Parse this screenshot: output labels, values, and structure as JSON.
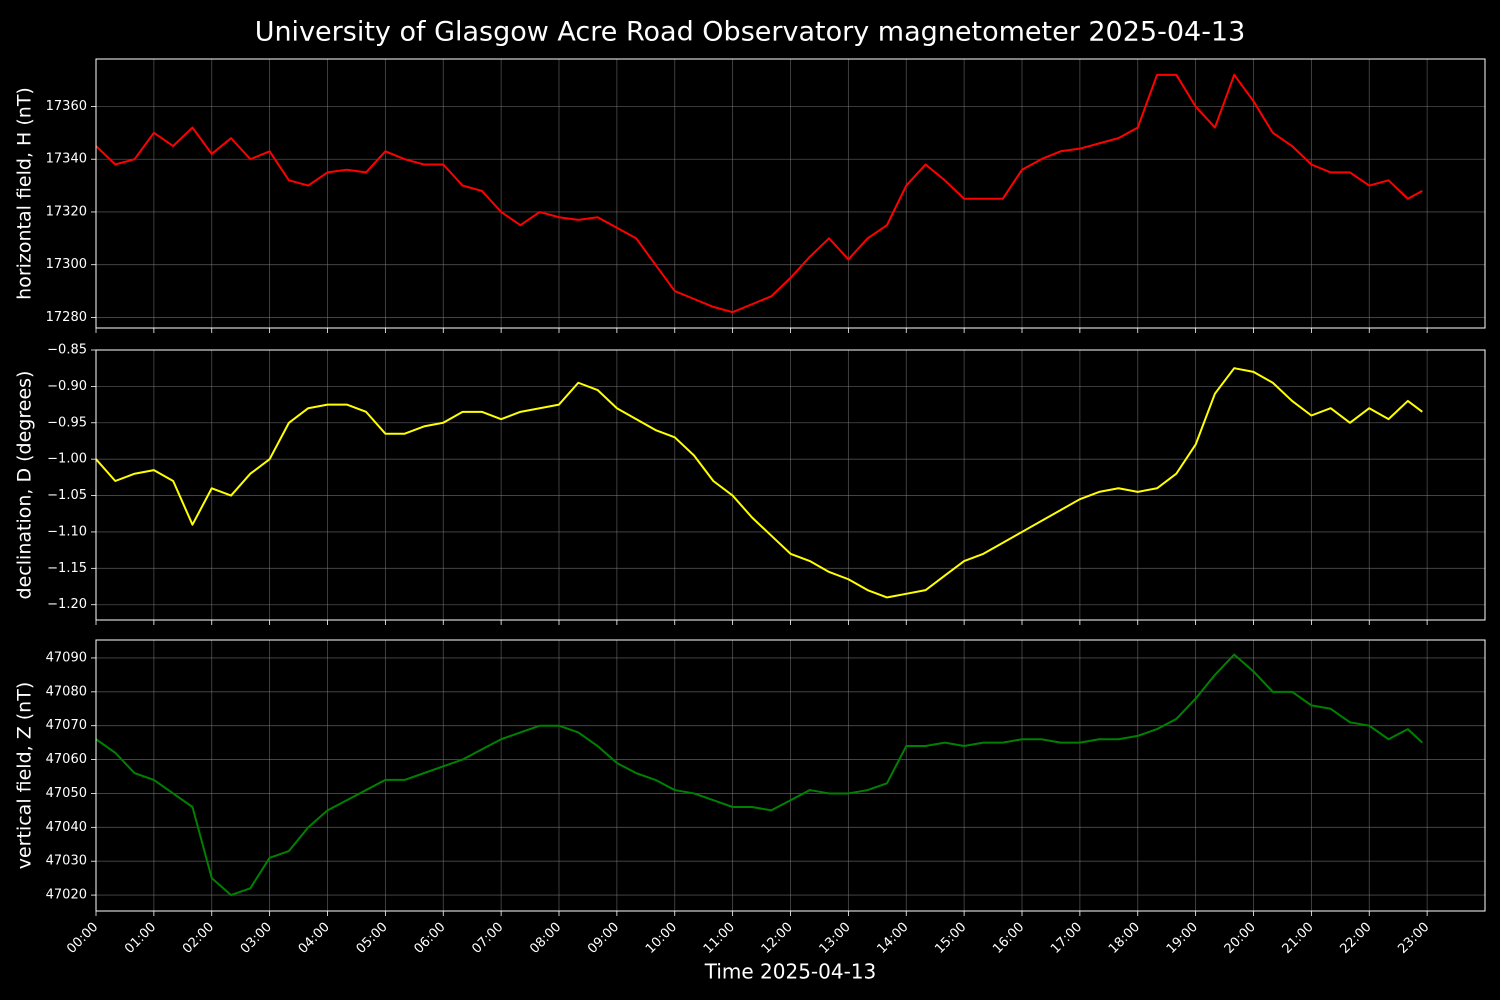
{
  "chart_data": [
    {
      "type": "line",
      "title": "University of Glasgow Acre Road Observatory magnetometer 2025-04-13",
      "ylabel": "horizontal field, H (nT)",
      "color": "#ff0000",
      "grid": true,
      "x": [
        "00:00",
        "00:20",
        "00:40",
        "01:00",
        "01:20",
        "01:40",
        "02:00",
        "02:20",
        "02:40",
        "03:00",
        "03:20",
        "03:40",
        "04:00",
        "04:20",
        "04:40",
        "05:00",
        "05:20",
        "05:40",
        "06:00",
        "06:20",
        "06:40",
        "07:00",
        "07:20",
        "07:40",
        "08:00",
        "08:20",
        "08:40",
        "09:00",
        "09:20",
        "09:40",
        "10:00",
        "10:20",
        "10:40",
        "11:00",
        "11:20",
        "11:40",
        "12:00",
        "12:20",
        "12:40",
        "13:00",
        "13:20",
        "13:40",
        "14:00",
        "14:20",
        "14:40",
        "15:00",
        "15:20",
        "15:40",
        "16:00",
        "16:20",
        "16:40",
        "17:00",
        "17:20",
        "17:40",
        "18:00",
        "18:20",
        "18:40",
        "19:00",
        "19:20",
        "19:40",
        "20:00",
        "20:20",
        "20:40",
        "21:00",
        "21:20",
        "21:40",
        "22:00",
        "22:20",
        "22:40",
        "22:55"
      ],
      "values": [
        17345,
        17338,
        17340,
        17350,
        17345,
        17352,
        17342,
        17348,
        17340,
        17343,
        17332,
        17330,
        17335,
        17336,
        17335,
        17343,
        17340,
        17338,
        17338,
        17330,
        17328,
        17320,
        17315,
        17320,
        17318,
        17317,
        17318,
        17314,
        17310,
        17300,
        17290,
        17287,
        17284,
        17282,
        17285,
        17288,
        17295,
        17303,
        17310,
        17302,
        17310,
        17315,
        17330,
        17338,
        17332,
        17325,
        17325,
        17325,
        17336,
        17340,
        17343,
        17344,
        17346,
        17348,
        17352,
        17372,
        17372,
        17360,
        17352,
        17372,
        17362,
        17350,
        17345,
        17338,
        17335,
        17335,
        17330,
        17332,
        17325,
        17328
      ],
      "xlim": [
        "00:00",
        "24:00"
      ],
      "xticks": [
        "00:00",
        "01:00",
        "02:00",
        "03:00",
        "04:00",
        "05:00",
        "06:00",
        "07:00",
        "08:00",
        "09:00",
        "10:00",
        "11:00",
        "12:00",
        "13:00",
        "14:00",
        "15:00",
        "16:00",
        "17:00",
        "18:00",
        "19:00",
        "20:00",
        "21:00",
        "22:00",
        "23:00"
      ],
      "ylim": [
        17276,
        17378
      ],
      "yticks": [
        17280,
        17300,
        17320,
        17340,
        17360
      ]
    },
    {
      "type": "line",
      "ylabel": "declination, D (degrees)",
      "color": "#ffff00",
      "grid": true,
      "x": [
        "00:00",
        "00:20",
        "00:40",
        "01:00",
        "01:20",
        "01:40",
        "02:00",
        "02:20",
        "02:40",
        "03:00",
        "03:20",
        "03:40",
        "04:00",
        "04:20",
        "04:40",
        "05:00",
        "05:20",
        "05:40",
        "06:00",
        "06:20",
        "06:40",
        "07:00",
        "07:20",
        "07:40",
        "08:00",
        "08:20",
        "08:40",
        "09:00",
        "09:20",
        "09:40",
        "10:00",
        "10:20",
        "10:40",
        "11:00",
        "11:20",
        "11:40",
        "12:00",
        "12:20",
        "12:40",
        "13:00",
        "13:20",
        "13:40",
        "14:00",
        "14:20",
        "14:40",
        "15:00",
        "15:20",
        "15:40",
        "16:00",
        "16:20",
        "16:40",
        "17:00",
        "17:20",
        "17:40",
        "18:00",
        "18:20",
        "18:40",
        "19:00",
        "19:20",
        "19:40",
        "20:00",
        "20:20",
        "20:40",
        "21:00",
        "21:20",
        "21:40",
        "22:00",
        "22:20",
        "22:40",
        "22:55"
      ],
      "values": [
        -1.0,
        -1.03,
        -1.02,
        -1.015,
        -1.03,
        -1.09,
        -1.04,
        -1.05,
        -1.02,
        -1.0,
        -0.95,
        -0.93,
        -0.925,
        -0.925,
        -0.935,
        -0.965,
        -0.965,
        -0.955,
        -0.95,
        -0.935,
        -0.935,
        -0.945,
        -0.935,
        -0.93,
        -0.925,
        -0.895,
        -0.905,
        -0.93,
        -0.945,
        -0.96,
        -0.97,
        -0.995,
        -1.03,
        -1.05,
        -1.08,
        -1.105,
        -1.13,
        -1.14,
        -1.155,
        -1.165,
        -1.18,
        -1.19,
        -1.185,
        -1.18,
        -1.16,
        -1.14,
        -1.13,
        -1.115,
        -1.1,
        -1.085,
        -1.07,
        -1.055,
        -1.045,
        -1.04,
        -1.045,
        -1.04,
        -1.02,
        -0.98,
        -0.91,
        -0.875,
        -0.88,
        -0.895,
        -0.92,
        -0.94,
        -0.93,
        -0.95,
        -0.93,
        -0.945,
        -0.92,
        -0.935
      ],
      "xlim": [
        "00:00",
        "24:00"
      ],
      "xticks": [
        "00:00",
        "01:00",
        "02:00",
        "03:00",
        "04:00",
        "05:00",
        "06:00",
        "07:00",
        "08:00",
        "09:00",
        "10:00",
        "11:00",
        "12:00",
        "13:00",
        "14:00",
        "15:00",
        "16:00",
        "17:00",
        "18:00",
        "19:00",
        "20:00",
        "21:00",
        "22:00",
        "23:00"
      ],
      "ylim": [
        -1.221,
        -0.85
      ],
      "yticks": [
        {
          "value": -1.2,
          "label": "−1.20"
        },
        {
          "value": -1.15,
          "label": "−1.15"
        },
        {
          "value": -1.1,
          "label": "−1.10"
        },
        {
          "value": -1.05,
          "label": "−1.05"
        },
        {
          "value": -1.0,
          "label": "−1.00"
        },
        {
          "value": -0.95,
          "label": "−0.95"
        },
        {
          "value": -0.9,
          "label": "−0.90"
        },
        {
          "value": -0.85,
          "label": "−0.85"
        }
      ]
    },
    {
      "type": "line",
      "ylabel": "vertical field, Z (nT)",
      "xlabel": "Time 2025-04-13",
      "color": "#008000",
      "grid": true,
      "x": [
        "00:00",
        "00:20",
        "00:40",
        "01:00",
        "01:20",
        "01:40",
        "02:00",
        "02:20",
        "02:40",
        "03:00",
        "03:20",
        "03:40",
        "04:00",
        "04:20",
        "04:40",
        "05:00",
        "05:20",
        "05:40",
        "06:00",
        "06:20",
        "06:40",
        "07:00",
        "07:20",
        "07:40",
        "08:00",
        "08:20",
        "08:40",
        "09:00",
        "09:20",
        "09:40",
        "10:00",
        "10:20",
        "10:40",
        "11:00",
        "11:20",
        "11:40",
        "12:00",
        "12:20",
        "12:40",
        "13:00",
        "13:20",
        "13:40",
        "14:00",
        "14:20",
        "14:40",
        "15:00",
        "15:20",
        "15:40",
        "16:00",
        "16:20",
        "16:40",
        "17:00",
        "17:20",
        "17:40",
        "18:00",
        "18:20",
        "18:40",
        "19:00",
        "19:20",
        "19:40",
        "20:00",
        "20:20",
        "20:40",
        "21:00",
        "21:20",
        "21:40",
        "22:00",
        "22:20",
        "22:40",
        "22:55"
      ],
      "values": [
        47066,
        47062,
        47056,
        47054,
        47050,
        47046,
        47025,
        47020,
        47022,
        47031,
        47033,
        47040,
        47045,
        47048,
        47051,
        47054,
        47054,
        47056,
        47058,
        47060,
        47063,
        47066,
        47068,
        47070,
        47070,
        47068,
        47064,
        47059,
        47056,
        47054,
        47051,
        47050,
        47048,
        47046,
        47046,
        47045,
        47048,
        47051,
        47050,
        47050,
        47051,
        47053,
        47064,
        47064,
        47065,
        47064,
        47065,
        47065,
        47066,
        47066,
        47065,
        47065,
        47066,
        47066,
        47067,
        47069,
        47072,
        47078,
        47085,
        47091,
        47086,
        47080,
        47080,
        47076,
        47075,
        47071,
        47070,
        47066,
        47069,
        47065
      ],
      "xlim": [
        "00:00",
        "24:00"
      ],
      "xticks": [
        "00:00",
        "01:00",
        "02:00",
        "03:00",
        "04:00",
        "05:00",
        "06:00",
        "07:00",
        "08:00",
        "09:00",
        "10:00",
        "11:00",
        "12:00",
        "13:00",
        "14:00",
        "15:00",
        "16:00",
        "17:00",
        "18:00",
        "19:00",
        "20:00",
        "21:00",
        "22:00",
        "23:00"
      ],
      "ylim": [
        47015.3,
        47095.3
      ],
      "yticks": [
        47020,
        47030,
        47040,
        47050,
        47060,
        47070,
        47080,
        47090
      ]
    }
  ]
}
